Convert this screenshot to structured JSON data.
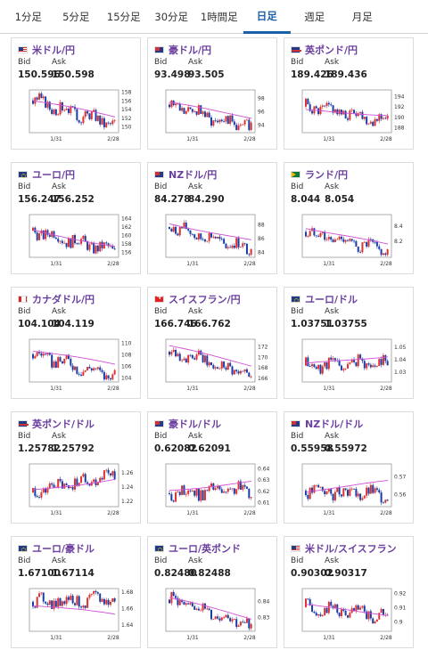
{
  "tabs": [
    {
      "label": "1分足",
      "active": false
    },
    {
      "label": "5分足",
      "active": false
    },
    {
      "label": "15分足",
      "active": false
    },
    {
      "label": "30分足",
      "active": false
    },
    {
      "label": "1時間足",
      "active": false
    },
    {
      "label": "日足",
      "active": true
    },
    {
      "label": "週足",
      "active": false
    },
    {
      "label": "月足",
      "active": false
    }
  ],
  "bid_label": "Bid",
  "ask_label": "Ask",
  "colors": {
    "up": "#e03030",
    "down": "#1a3ea8",
    "ma": "#d14fd6",
    "accent": "#1a5fa8",
    "title": "#6b3fa0"
  },
  "cards": [
    {
      "title": "米ドル/円",
      "flag": "us",
      "bid": "150.596",
      "ask": "150.598",
      "chart_data": {
        "type": "candlestick",
        "x_ticks": [
          "1/31",
          "2/28"
        ],
        "yticks": [
          150,
          152,
          154,
          156,
          158
        ],
        "ylim": [
          148.6,
          158.4
        ],
        "start": 156.0,
        "end": 150.6,
        "ma_start": 155.9,
        "ma_end": 152.2
      }
    },
    {
      "title": "豪ドル/円",
      "flag": "au",
      "bid": "93.498",
      "ask": "93.505",
      "chart_data": {
        "type": "candlestick",
        "x_ticks": [
          "1/31",
          "2/28"
        ],
        "yticks": [
          94,
          96,
          98
        ],
        "ylim": [
          92.8,
          99.2
        ],
        "start": 97.0,
        "end": 93.5,
        "ma_start": 97.2,
        "ma_end": 95.1
      }
    },
    {
      "title": "英ポンド/円",
      "flag": "gb",
      "bid": "189.426",
      "ask": "189.436",
      "chart_data": {
        "type": "candlestick",
        "x_ticks": [
          "1/31",
          "2/28"
        ],
        "yticks": [
          188,
          190,
          192,
          194
        ],
        "ylim": [
          187.0,
          195.2
        ],
        "start": 192.0,
        "end": 189.4,
        "ma_start": 191.2,
        "ma_end": 190.5
      }
    },
    {
      "title": "ユーロ/円",
      "flag": "eu",
      "bid": "156.247",
      "ask": "156.252",
      "chart_data": {
        "type": "candlestick",
        "x_ticks": [
          "1/31",
          "2/28"
        ],
        "yticks": [
          156,
          158,
          160,
          162,
          164
        ],
        "ylim": [
          154.8,
          164.8
        ],
        "start": 161.0,
        "end": 156.2,
        "ma_start": 161.2,
        "ma_end": 157.4
      }
    },
    {
      "title": "NZドル/円",
      "flag": "nz",
      "bid": "84.278",
      "ask": "84.290",
      "chart_data": {
        "type": "candlestick",
        "x_ticks": [
          "1/31",
          "2/28"
        ],
        "yticks": [
          84,
          86,
          88
        ],
        "ylim": [
          83.2,
          89.4
        ],
        "start": 87.6,
        "end": 84.3,
        "ma_start": 88.2,
        "ma_end": 85.6
      }
    },
    {
      "title": "ランド/円",
      "flag": "za",
      "bid": "8.044",
      "ask": "8.054",
      "chart_data": {
        "type": "candlestick",
        "x_ticks": [
          "1/31",
          "2/28"
        ],
        "yticks": [
          8.2,
          8.4
        ],
        "ylim": [
          7.98,
          8.55
        ],
        "start": 8.32,
        "end": 8.05,
        "ma_start": 8.38,
        "ma_end": 8.14
      }
    },
    {
      "title": "カナダドル/円",
      "flag": "ca",
      "bid": "104.104",
      "ask": "104.119",
      "chart_data": {
        "type": "candlestick",
        "x_ticks": [
          "1/31",
          "2/28"
        ],
        "yticks": [
          104,
          106,
          108,
          110
        ],
        "ylim": [
          103.2,
          110.6
        ],
        "start": 108.0,
        "end": 104.1,
        "ma_start": 108.6,
        "ma_end": 106.2
      }
    },
    {
      "title": "スイスフラン/円",
      "flag": "ch",
      "bid": "166.746",
      "ask": "166.762",
      "chart_data": {
        "type": "candlestick",
        "x_ticks": [
          "1/31",
          "2/28"
        ],
        "yticks": [
          166,
          168,
          170,
          172
        ],
        "ylim": [
          165.2,
          173.4
        ],
        "start": 171.0,
        "end": 166.7,
        "ma_start": 172.0,
        "ma_end": 168.4
      }
    },
    {
      "title": "ユーロ/ドル",
      "flag": "eu",
      "bid": "1.03751",
      "ask": "1.03755",
      "chart_data": {
        "type": "candlestick",
        "x_ticks": [
          "1/31",
          "2/28"
        ],
        "yticks": [
          1.03,
          1.04,
          1.05
        ],
        "ylim": [
          1.022,
          1.056
        ],
        "start": 1.035,
        "end": 1.0375,
        "ma_start": 1.036,
        "ma_end": 1.043
      }
    },
    {
      "title": "英ポンド/ドル",
      "flag": "gb",
      "bid": "1.25782",
      "ask": "1.25792",
      "chart_data": {
        "type": "candlestick",
        "x_ticks": [
          "1/31",
          "2/28"
        ],
        "yticks": [
          1.22,
          1.24,
          1.26
        ],
        "ylim": [
          1.212,
          1.272
        ],
        "start": 1.232,
        "end": 1.2578,
        "ma_start": 1.235,
        "ma_end": 1.251
      }
    },
    {
      "title": "豪ドル/ドル",
      "flag": "au",
      "bid": "0.62082",
      "ask": "0.62091",
      "chart_data": {
        "type": "candlestick",
        "x_ticks": [
          "1/31",
          "2/28"
        ],
        "yticks": [
          0.61,
          0.62,
          0.63,
          0.64
        ],
        "ylim": [
          0.606,
          0.644
        ],
        "start": 0.618,
        "end": 0.6208,
        "ma_start": 0.621,
        "ma_end": 0.628
      }
    },
    {
      "title": "NZドル/ドル",
      "flag": "nz",
      "bid": "0.55958",
      "ask": "0.55972",
      "chart_data": {
        "type": "candlestick",
        "x_ticks": [
          "1/31",
          "2/28"
        ],
        "yticks": [
          0.56,
          0.57
        ],
        "ylim": [
          0.553,
          0.577
        ],
        "start": 0.562,
        "end": 0.5596,
        "ma_start": 0.562,
        "ma_end": 0.567
      }
    },
    {
      "title": "ユーロ/豪ドル",
      "flag": "eu",
      "bid": "1.67100",
      "ask": "1.67114",
      "chart_data": {
        "type": "candlestick",
        "x_ticks": [
          "1/31",
          "2/28"
        ],
        "yticks": [
          1.64,
          1.66,
          1.68
        ],
        "ylim": [
          1.632,
          1.684
        ],
        "start": 1.668,
        "end": 1.671,
        "ma_start": 1.664,
        "ma_end": 1.652
      }
    },
    {
      "title": "ユーロ/英ポンド",
      "flag": "eu",
      "bid": "0.82480",
      "ask": "0.82488",
      "chart_data": {
        "type": "candlestick",
        "x_ticks": [
          "1/31",
          "2/28"
        ],
        "yticks": [
          0.83,
          0.84
        ],
        "ylim": [
          0.821,
          0.848
        ],
        "start": 0.841,
        "end": 0.8248,
        "ma_start": 0.842,
        "ma_end": 0.829
      }
    },
    {
      "title": "米ドル/スイスフラン",
      "flag": "us",
      "bid": "0.90302",
      "ask": "0.90317",
      "chart_data": {
        "type": "candlestick",
        "x_ticks": [
          "1/31",
          "2/28"
        ],
        "yticks": [
          0.9,
          0.91,
          0.92
        ],
        "ylim": [
          0.893,
          0.923
        ],
        "start": 0.91,
        "end": 0.903,
        "ma_start": 0.911,
        "ma_end": 0.905
      }
    }
  ]
}
